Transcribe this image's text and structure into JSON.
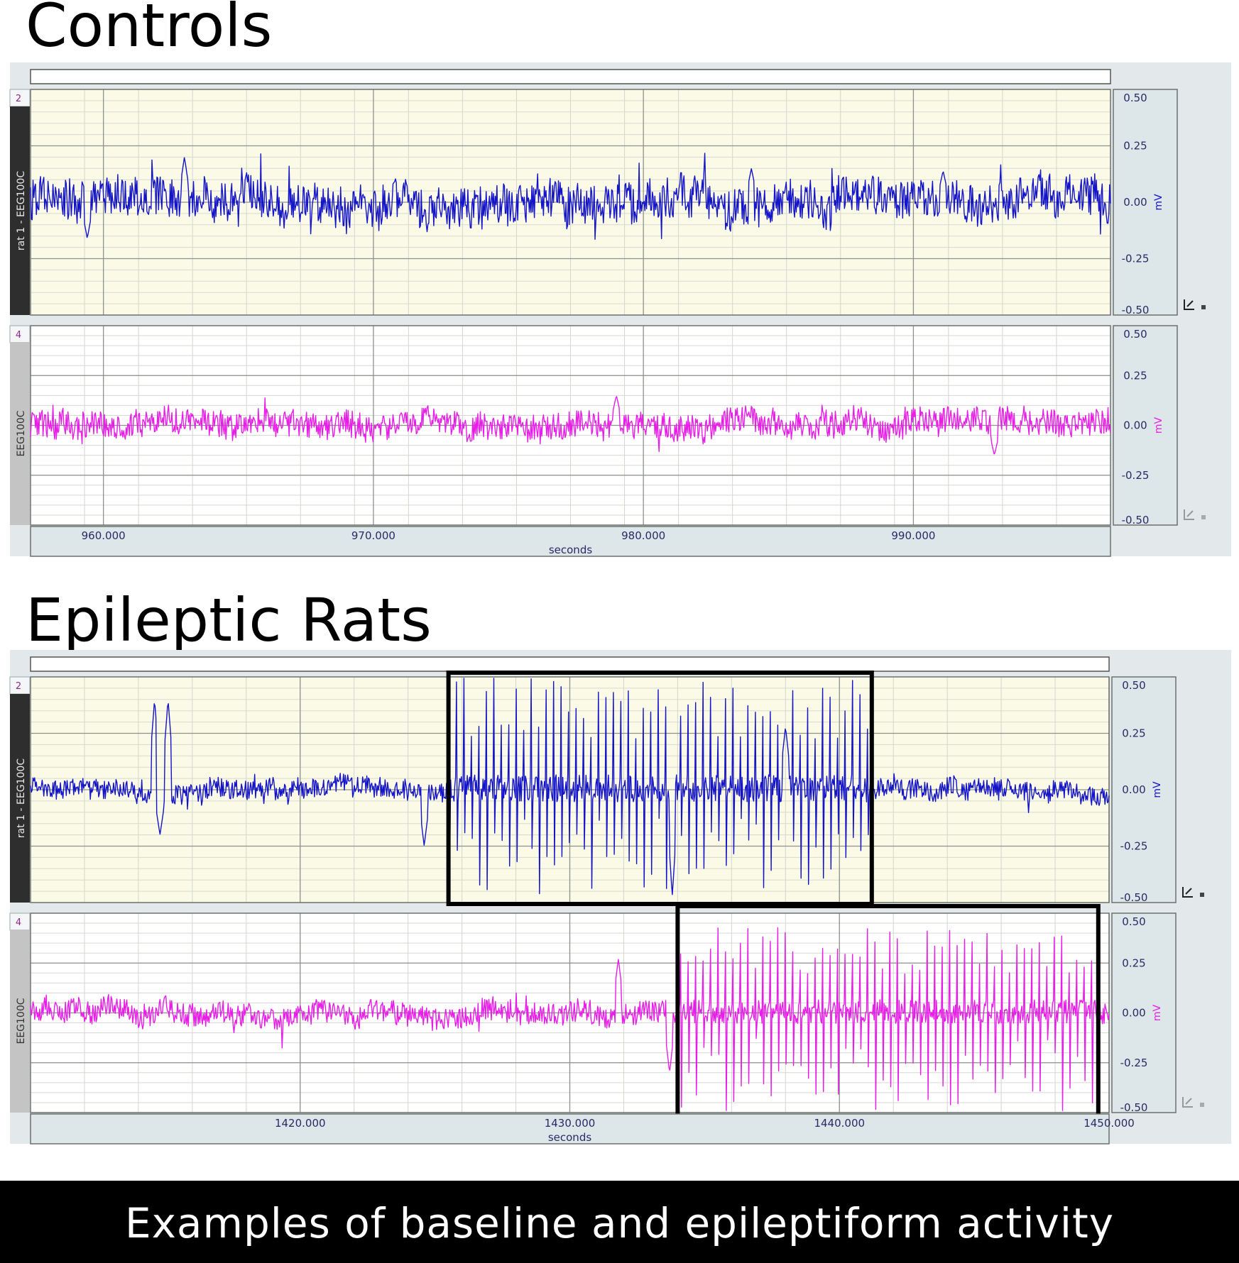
{
  "sections": {
    "controls_title": "Controls",
    "epileptic_title": "Epileptic Rats"
  },
  "caption": "Examples of baseline and epileptiform activity",
  "colors": {
    "channel2_trace": "#1414c8",
    "channel4_trace": "#e61ee6",
    "channel2_background": "#fafae6",
    "axis_panel": "#dde6e9",
    "highlight_box": "#000000"
  },
  "chart_data": [
    {
      "type": "line",
      "title": "Controls",
      "xlabel": "seconds",
      "x_ticks": [
        "960.000",
        "970.000",
        "980.000",
        "990.000"
      ],
      "xlim": [
        957.3,
        997.3
      ],
      "channels": [
        {
          "number": "2",
          "name": "rat 1 - EEG100C",
          "unit": "mV",
          "ylim": [
            -0.5,
            0.5
          ],
          "y_ticks": [
            "0.50",
            "0.25",
            "0.00",
            "-0.25",
            "-0.50"
          ],
          "color": "#1414c8",
          "baseline_amplitude_mV": 0.08,
          "events": [
            {
              "x": 959.4,
              "y": -0.16
            },
            {
              "x": 963.0,
              "y": 0.2
            },
            {
              "x": 984.0,
              "y": 0.15
            },
            {
              "x": 991.1,
              "y": 0.14
            }
          ]
        },
        {
          "number": "4",
          "name": "EEG100C",
          "unit": "mV",
          "ylim": [
            -0.5,
            0.5
          ],
          "y_ticks": [
            "0.50",
            "0.25",
            "0.00",
            "-0.25",
            "-0.50"
          ],
          "color": "#e61ee6",
          "baseline_amplitude_mV": 0.06,
          "events": [
            {
              "x": 979.0,
              "y": 0.15
            },
            {
              "x": 993.0,
              "y": -0.15
            }
          ]
        }
      ]
    },
    {
      "type": "line",
      "title": "Epileptic Rats",
      "xlabel": "seconds",
      "x_ticks": [
        "1420.000",
        "1430.000",
        "1440.000",
        "1450.000"
      ],
      "xlim": [
        1410.0,
        1450.0
      ],
      "channels": [
        {
          "number": "2",
          "name": "rat 1 - EEG100C",
          "unit": "mV",
          "ylim": [
            -0.5,
            0.5
          ],
          "y_ticks": [
            "0.50",
            "0.25",
            "0.00",
            "-0.25",
            "-0.50"
          ],
          "color": "#1414c8",
          "baseline_amplitude_mV": 0.04,
          "events": [
            {
              "x": 1414.6,
              "y": 0.4
            },
            {
              "x": 1415.1,
              "y": 0.4
            },
            {
              "x": 1414.8,
              "y": -0.2
            },
            {
              "x": 1424.6,
              "y": -0.25
            },
            {
              "x": 1433.8,
              "y": -0.47
            },
            {
              "x": 1438.0,
              "y": 0.28
            }
          ],
          "seizure_window": [
            1425.5,
            1441.2
          ],
          "seizure_max_mV": 0.5,
          "seizure_min_mV": -0.47
        },
        {
          "number": "4",
          "name": "EEG100C",
          "unit": "mV",
          "ylim": [
            -0.5,
            0.5
          ],
          "y_ticks": [
            "0.50",
            "0.25",
            "0.00",
            "-0.25",
            "-0.50"
          ],
          "color": "#e61ee6",
          "baseline_amplitude_mV": 0.05,
          "events": [
            {
              "x": 1431.8,
              "y": 0.27
            },
            {
              "x": 1433.7,
              "y": -0.3
            }
          ],
          "seizure_window": [
            1434.0,
            1449.6
          ],
          "seizure_max_mV": 0.43,
          "seizure_min_mV": -0.5
        }
      ]
    }
  ]
}
